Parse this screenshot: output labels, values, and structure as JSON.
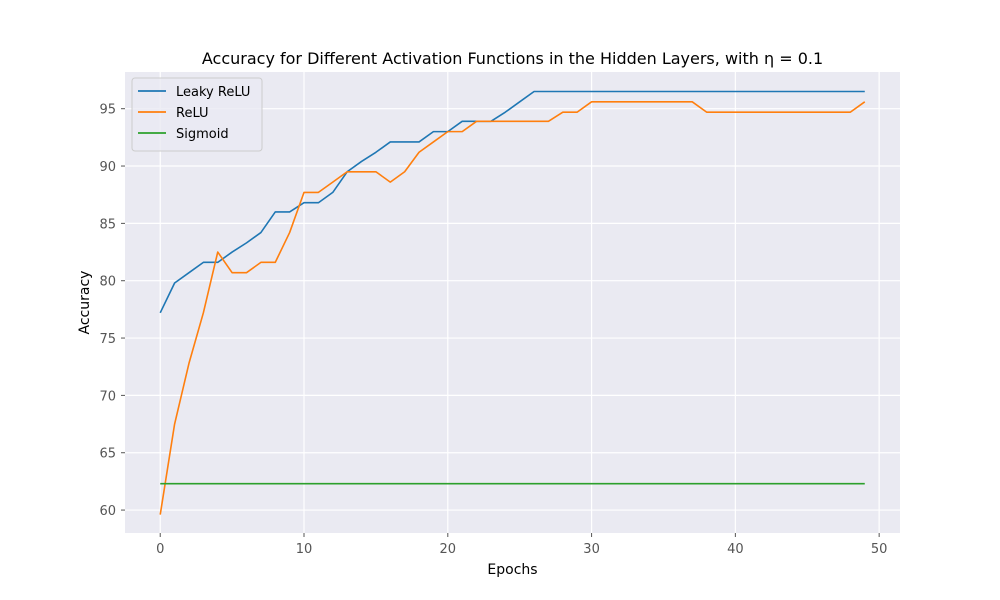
{
  "chart_data": {
    "type": "line",
    "title": "Accuracy for Different Activation Functions in the Hidden Layers, with η = 0.1",
    "xlabel": "Epochs",
    "ylabel": "Accuracy",
    "xlim": [
      -2.45,
      51.45
    ],
    "ylim": [
      58.0,
      98.2
    ],
    "xticks": [
      0,
      10,
      20,
      30,
      40,
      50
    ],
    "yticks": [
      60,
      65,
      70,
      75,
      80,
      85,
      90,
      95
    ],
    "grid": true,
    "legend_position": "top-left",
    "x": [
      0,
      1,
      2,
      3,
      4,
      5,
      6,
      7,
      8,
      9,
      10,
      11,
      12,
      13,
      14,
      15,
      16,
      17,
      18,
      19,
      20,
      21,
      22,
      23,
      24,
      25,
      26,
      27,
      28,
      29,
      30,
      31,
      32,
      33,
      34,
      35,
      36,
      37,
      38,
      39,
      40,
      41,
      42,
      43,
      44,
      45,
      46,
      47,
      48,
      49
    ],
    "series": [
      {
        "name": "Leaky ReLU",
        "color": "#1f77b4",
        "values": [
          77.2,
          79.8,
          80.7,
          81.6,
          81.6,
          82.5,
          83.3,
          84.2,
          86.0,
          86.0,
          86.8,
          86.8,
          87.7,
          89.5,
          90.4,
          91.2,
          92.1,
          92.1,
          92.1,
          93.0,
          93.0,
          93.9,
          93.9,
          93.9,
          94.7,
          95.6,
          96.5,
          96.5,
          96.5,
          96.5,
          96.5,
          96.5,
          96.5,
          96.5,
          96.5,
          96.5,
          96.5,
          96.5,
          96.5,
          96.5,
          96.5,
          96.5,
          96.5,
          96.5,
          96.5,
          96.5,
          96.5,
          96.5,
          96.5,
          96.5
        ]
      },
      {
        "name": "ReLU",
        "color": "#ff7f0e",
        "values": [
          59.6,
          67.5,
          72.8,
          77.2,
          82.5,
          80.7,
          80.7,
          81.6,
          81.6,
          84.2,
          87.7,
          87.7,
          88.6,
          89.5,
          89.5,
          89.5,
          88.6,
          89.5,
          91.2,
          92.1,
          93.0,
          93.0,
          93.9,
          93.9,
          93.9,
          93.9,
          93.9,
          93.9,
          94.7,
          94.7,
          95.6,
          95.6,
          95.6,
          95.6,
          95.6,
          95.6,
          95.6,
          95.6,
          94.7,
          94.7,
          94.7,
          94.7,
          94.7,
          94.7,
          94.7,
          94.7,
          94.7,
          94.7,
          94.7,
          95.6
        ]
      },
      {
        "name": "Sigmoid",
        "color": "#2ca02c",
        "values": [
          62.3,
          62.3,
          62.3,
          62.3,
          62.3,
          62.3,
          62.3,
          62.3,
          62.3,
          62.3,
          62.3,
          62.3,
          62.3,
          62.3,
          62.3,
          62.3,
          62.3,
          62.3,
          62.3,
          62.3,
          62.3,
          62.3,
          62.3,
          62.3,
          62.3,
          62.3,
          62.3,
          62.3,
          62.3,
          62.3,
          62.3,
          62.3,
          62.3,
          62.3,
          62.3,
          62.3,
          62.3,
          62.3,
          62.3,
          62.3,
          62.3,
          62.3,
          62.3,
          62.3,
          62.3,
          62.3,
          62.3,
          62.3,
          62.3,
          62.3
        ]
      }
    ]
  }
}
